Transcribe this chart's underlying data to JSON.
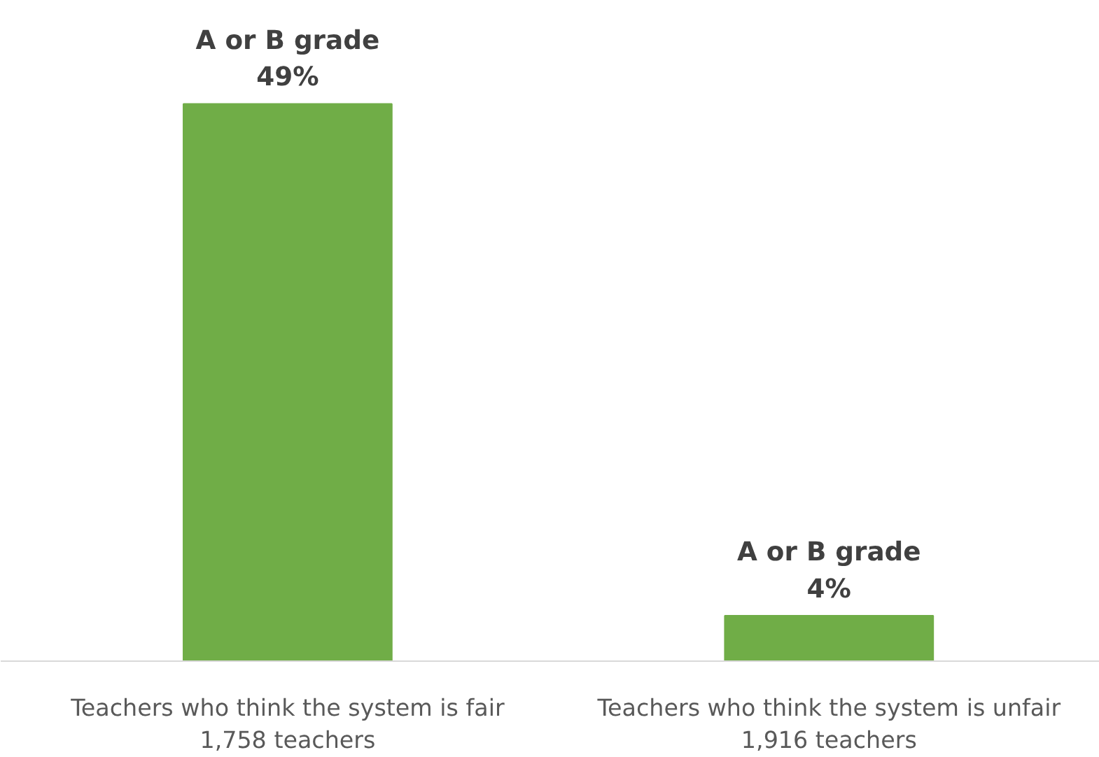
{
  "chart_data": {
    "type": "bar",
    "categories": [
      "Teachers who think the system is fair\n1,758 teachers",
      "Teachers who think the system is unfair\n1,916 teachers"
    ],
    "values": [
      49,
      4
    ],
    "color": "#70ad47",
    "value_labels": [
      "A or B grade\n49%",
      "A or B grade\n4%"
    ]
  }
}
